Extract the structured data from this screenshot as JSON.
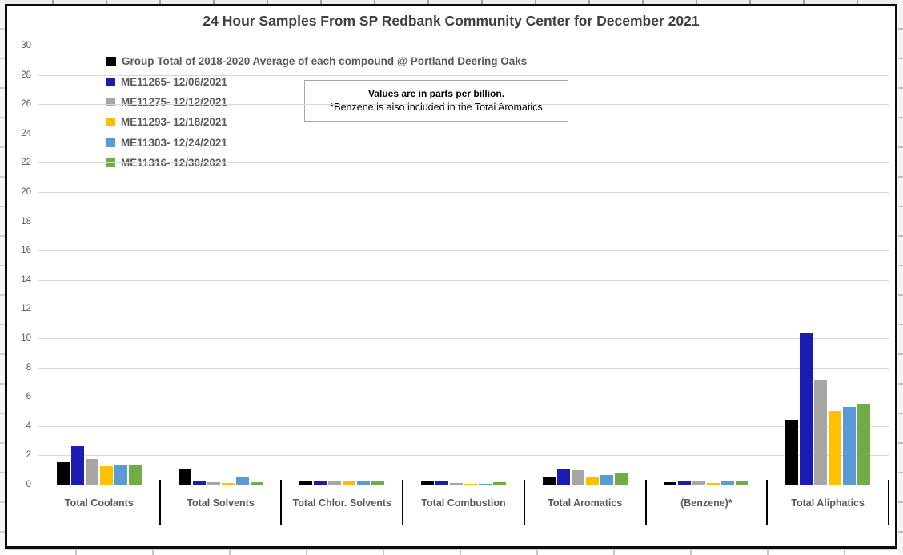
{
  "note": {
    "line1": "Values are in parts per billion.",
    "line2": "*Benzene is also included in the Total Aromatics"
  },
  "chart_data": {
    "type": "bar",
    "title": "24 Hour Samples From SP Redbank Community Center for December 2021",
    "categories": [
      "Total Coolants",
      "Total Solvents",
      "Total Chlor. Solvents",
      "Total Combustion",
      "Total Aromatics",
      "(Benzene)*",
      "Total Aliphatics"
    ],
    "series": [
      {
        "name": "Group Total of 2018-2020 Average of each compound @ Portland Deering Oaks",
        "color": "#000000",
        "values": [
          1.55,
          1.1,
          0.3,
          0.22,
          0.55,
          0.18,
          4.45
        ]
      },
      {
        "name": "ME11265- 12/06/2021",
        "color": "#1b1cb3",
        "values": [
          2.6,
          0.25,
          0.3,
          0.22,
          1.05,
          0.25,
          10.35
        ]
      },
      {
        "name": "ME11275- 12/12/2021",
        "color": "#a6a6a6",
        "values": [
          1.75,
          0.18,
          0.25,
          0.1,
          1.0,
          0.22,
          7.15
        ]
      },
      {
        "name": "ME11293- 12/18/2021",
        "color": "#ffc000",
        "values": [
          1.25,
          0.1,
          0.2,
          0.08,
          0.5,
          0.12,
          5.05
        ]
      },
      {
        "name": "ME11303- 12/24/2021",
        "color": "#5b9bd5",
        "values": [
          1.35,
          0.55,
          0.22,
          0.08,
          0.65,
          0.22,
          5.3
        ]
      },
      {
        "name": "ME11316- 12/30/2021",
        "color": "#70ad47",
        "values": [
          1.35,
          0.18,
          0.22,
          0.15,
          0.75,
          0.25,
          5.5
        ]
      }
    ],
    "ylim": [
      0,
      30
    ],
    "ytick_step": 2,
    "yticks": [
      0,
      2,
      4,
      6,
      8,
      10,
      12,
      14,
      16,
      18,
      20,
      22,
      24,
      26,
      28,
      30
    ],
    "grid": true,
    "legend_position": "top-left-inside",
    "units": "parts per billion",
    "xlabel": "",
    "ylabel": "",
    "colors": {
      "grid": "#d9d9d9",
      "axis": "#bfbfbf",
      "text": "#595959",
      "title_text": "#3f3f3f"
    }
  }
}
